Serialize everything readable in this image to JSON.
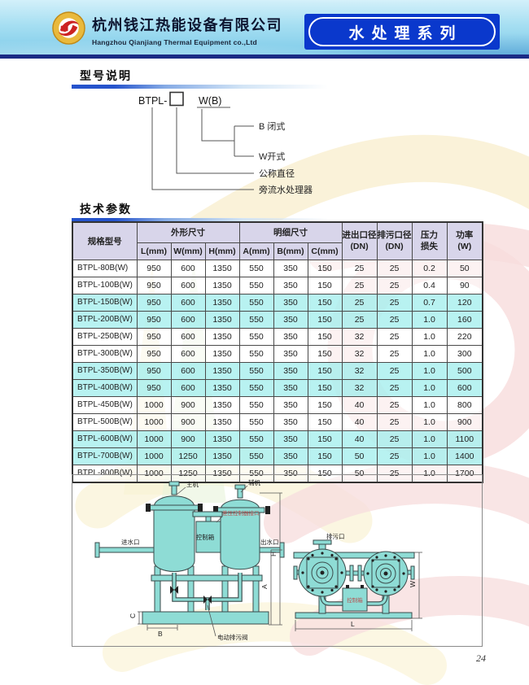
{
  "header": {
    "company_name_zh": "杭州钱江热能设备有限公司",
    "company_name_en": "Hangzhou Qianjiang Thermal Equipment co.,Ltd",
    "series_banner": "水处理系列"
  },
  "sections": {
    "model": {
      "title": "型号说明"
    },
    "tech": {
      "title": "技术参数"
    }
  },
  "model_diagram": {
    "prefix": "BTPL-",
    "suffix": "W(B)",
    "labels": {
      "b_type": "B 闭式",
      "w_type": "W开式",
      "diameter": "公称直径",
      "device": "旁流水处理器"
    }
  },
  "table": {
    "header": {
      "model": "规格型号",
      "outline_group": "外形尺寸",
      "detail_group": "明细尺寸",
      "l": "L(mm)",
      "w": "W(mm)",
      "h": "H(mm)",
      "a": "A(mm)",
      "b": "B(mm)",
      "c": "C(mm)",
      "inlet_line1": "进出口径",
      "inlet_line2": "(DN)",
      "drain_line1": "排污口径",
      "drain_line2": "(DN)",
      "pressure_line1": "压力",
      "pressure_line2": "损失",
      "power_line1": "功率",
      "power_line2": "(W)"
    },
    "rows": [
      {
        "model": "BTPL-80B(W)",
        "values": [
          "950",
          "600",
          "1350",
          "550",
          "350",
          "150",
          "25",
          "25",
          "0.2",
          "50"
        ],
        "highlight": false
      },
      {
        "model": "BTPL-100B(W)",
        "values": [
          "950",
          "600",
          "1350",
          "550",
          "350",
          "150",
          "25",
          "25",
          "0.4",
          "90"
        ],
        "highlight": false
      },
      {
        "model": "BTPL-150B(W)",
        "values": [
          "950",
          "600",
          "1350",
          "550",
          "350",
          "150",
          "25",
          "25",
          "0.7",
          "120"
        ],
        "highlight": true
      },
      {
        "model": "BTPL-200B(W)",
        "values": [
          "950",
          "600",
          "1350",
          "550",
          "350",
          "150",
          "25",
          "25",
          "1.0",
          "160"
        ],
        "highlight": true
      },
      {
        "model": "BTPL-250B(W)",
        "values": [
          "950",
          "600",
          "1350",
          "550",
          "350",
          "150",
          "32",
          "25",
          "1.0",
          "220"
        ],
        "highlight": false
      },
      {
        "model": "BTPL-300B(W)",
        "values": [
          "950",
          "600",
          "1350",
          "550",
          "350",
          "150",
          "32",
          "25",
          "1.0",
          "300"
        ],
        "highlight": false
      },
      {
        "model": "BTPL-350B(W)",
        "values": [
          "950",
          "600",
          "1350",
          "550",
          "350",
          "150",
          "32",
          "25",
          "1.0",
          "500"
        ],
        "highlight": true
      },
      {
        "model": "BTPL-400B(W)",
        "values": [
          "950",
          "600",
          "1350",
          "550",
          "350",
          "150",
          "32",
          "25",
          "1.0",
          "600"
        ],
        "highlight": true
      },
      {
        "model": "BTPL-450B(W)",
        "values": [
          "1000",
          "900",
          "1350",
          "550",
          "350",
          "150",
          "40",
          "25",
          "1.0",
          "800"
        ],
        "highlight": false
      },
      {
        "model": "BTPL-500B(W)",
        "values": [
          "1000",
          "900",
          "1350",
          "550",
          "350",
          "150",
          "40",
          "25",
          "1.0",
          "900"
        ],
        "highlight": false
      },
      {
        "model": "BTPL-600B(W)",
        "values": [
          "1000",
          "900",
          "1350",
          "550",
          "350",
          "150",
          "40",
          "25",
          "1.0",
          "1100"
        ],
        "highlight": true
      },
      {
        "model": "BTPL-700B(W)",
        "values": [
          "1000",
          "1250",
          "1350",
          "550",
          "350",
          "150",
          "50",
          "25",
          "1.0",
          "1400"
        ],
        "highlight": true
      },
      {
        "model": "BTPL-800B(W)",
        "values": [
          "1000",
          "1250",
          "1350",
          "550",
          "350",
          "150",
          "50",
          "25",
          "1.0",
          "1700"
        ],
        "highlight": false
      }
    ]
  },
  "drawings": {
    "front_view": {
      "main_unit": "主机",
      "aux_unit": "辅机",
      "dp_controller": "差压控制器接口",
      "control_box": "控制箱",
      "inlet": "进水口",
      "outlet": "出水口",
      "drain_valve": "电动排污阀",
      "dims": {
        "h": "H",
        "a": "A",
        "b": "B",
        "c": "C"
      }
    },
    "top_view": {
      "drain_port": "排污口",
      "control_box": "控制箱",
      "dims": {
        "w": "W",
        "l": "L"
      }
    }
  },
  "page_number": "24",
  "colors": {
    "banner_blue": "#0a38cc",
    "navy_bar": "#1b2b85",
    "accent_underline": "#2553cc",
    "table_header_bg": "#d8d5ea",
    "row_highlight": "#aceeec",
    "tank_fill": "#8edcd5"
  }
}
